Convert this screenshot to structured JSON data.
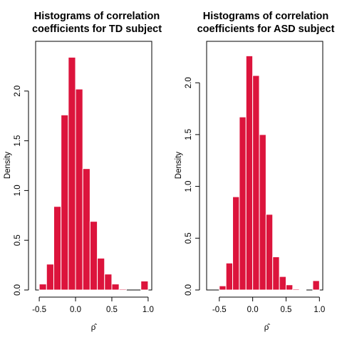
{
  "chart_data": [
    {
      "type": "histogram",
      "title": [
        "Histograms of correlation",
        "coefficients for TD  subject"
      ],
      "xlabel": "ρ̂",
      "ylabel": "Density",
      "xlim": [
        -0.55,
        1.05
      ],
      "ylim": [
        0,
        2.5
      ],
      "xticks": [
        "-0.5",
        "0.0",
        "0.5",
        "1.0"
      ],
      "xtick_values": [
        -0.5,
        0.0,
        0.5,
        1.0
      ],
      "yticks": [
        "0.0",
        "0.5",
        "1.0",
        "1.5",
        "2.0"
      ],
      "ytick_values": [
        0.0,
        0.5,
        1.0,
        1.5,
        2.0
      ],
      "bin_width": 0.1,
      "bins": [
        {
          "start": -0.5,
          "end": -0.4,
          "density": 0.06
        },
        {
          "start": -0.4,
          "end": -0.3,
          "density": 0.26
        },
        {
          "start": -0.3,
          "end": -0.2,
          "density": 0.84
        },
        {
          "start": -0.2,
          "end": -0.1,
          "density": 1.76
        },
        {
          "start": -0.1,
          "end": 0.0,
          "density": 2.34
        },
        {
          "start": 0.0,
          "end": 0.1,
          "density": 2.02
        },
        {
          "start": 0.1,
          "end": 0.2,
          "density": 1.22
        },
        {
          "start": 0.2,
          "end": 0.3,
          "density": 0.69
        },
        {
          "start": 0.3,
          "end": 0.4,
          "density": 0.32
        },
        {
          "start": 0.4,
          "end": 0.5,
          "density": 0.16
        },
        {
          "start": 0.5,
          "end": 0.6,
          "density": 0.06
        },
        {
          "start": 0.6,
          "end": 0.7,
          "density": 0.01
        },
        {
          "start": 0.9,
          "end": 1.0,
          "density": 0.09
        }
      ],
      "bar_color": "#dc143c",
      "grid": false
    },
    {
      "type": "histogram",
      "title": [
        "Histograms of correlation",
        "coefficients for ASD subject"
      ],
      "xlabel": "ρ̂",
      "ylabel": "Density",
      "xlim": [
        -0.69,
        1.05
      ],
      "ylim": [
        0,
        2.4
      ],
      "xticks": [
        "-0.5",
        "0.0",
        "0.5",
        "1.0"
      ],
      "xtick_values": [
        -0.5,
        0.0,
        0.5,
        1.0
      ],
      "yticks": [
        "0.0",
        "0.5",
        "1.0",
        "1.5",
        "2.0"
      ],
      "ytick_values": [
        0.0,
        0.5,
        1.0,
        1.5,
        2.0
      ],
      "bin_width": 0.1,
      "bins": [
        {
          "start": -0.5,
          "end": -0.4,
          "density": 0.04
        },
        {
          "start": -0.4,
          "end": -0.3,
          "density": 0.26
        },
        {
          "start": -0.3,
          "end": -0.2,
          "density": 0.9
        },
        {
          "start": -0.2,
          "end": -0.1,
          "density": 1.67
        },
        {
          "start": -0.1,
          "end": 0.0,
          "density": 2.26
        },
        {
          "start": 0.0,
          "end": 0.1,
          "density": 2.07
        },
        {
          "start": 0.1,
          "end": 0.2,
          "density": 1.5
        },
        {
          "start": 0.2,
          "end": 0.3,
          "density": 0.73
        },
        {
          "start": 0.3,
          "end": 0.4,
          "density": 0.32
        },
        {
          "start": 0.4,
          "end": 0.5,
          "density": 0.13
        },
        {
          "start": 0.5,
          "end": 0.6,
          "density": 0.05
        },
        {
          "start": 0.6,
          "end": 0.7,
          "density": 0.01
        },
        {
          "start": 0.7,
          "end": 0.8,
          "density": 0.005
        },
        {
          "start": 0.9,
          "end": 1.0,
          "density": 0.09
        }
      ],
      "bar_color": "#dc143c",
      "grid": false
    }
  ]
}
